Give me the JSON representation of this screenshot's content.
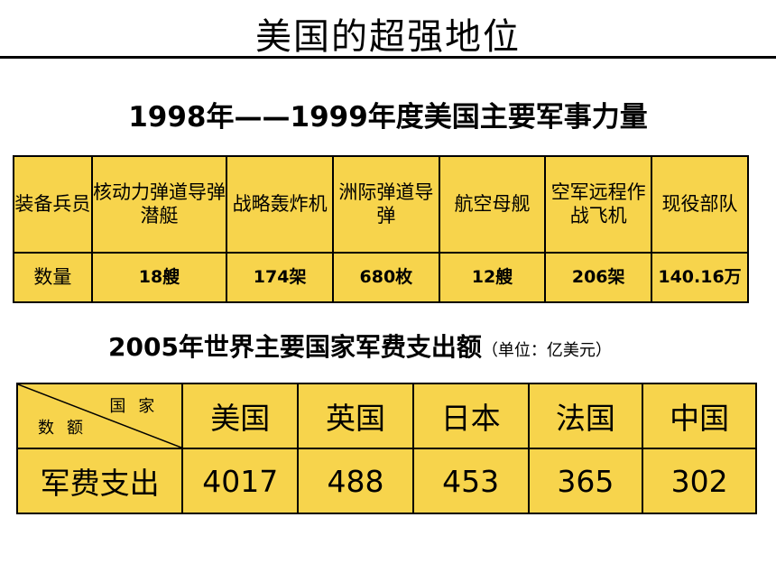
{
  "title": "美国的超强地位",
  "table1": {
    "caption": "1998年——1999年度美国主要军事力量",
    "header_first": "装备兵员",
    "headers": [
      "核动力弹道导弹潜艇",
      "战略轰炸机",
      "洲际弹道导弹",
      "航空母舰",
      "空军远程作战飞机",
      "现役部队"
    ],
    "row_label": "数量",
    "values": [
      "18艘",
      "174架",
      "680枚",
      "12艘",
      "206架",
      "140.16万"
    ]
  },
  "table2": {
    "caption": "2005年世界主要国家军费支出额",
    "unit": "（单位：亿美元）",
    "diag_top": "国家",
    "diag_bottom": "数额",
    "countries": [
      "美国",
      "英国",
      "日本",
      "法国",
      "中国"
    ],
    "row_label": "军费支出",
    "values": [
      "4017",
      "488",
      "453",
      "365",
      "302"
    ]
  },
  "colors": {
    "table_fill": "#f7d44c",
    "border": "#000000"
  }
}
